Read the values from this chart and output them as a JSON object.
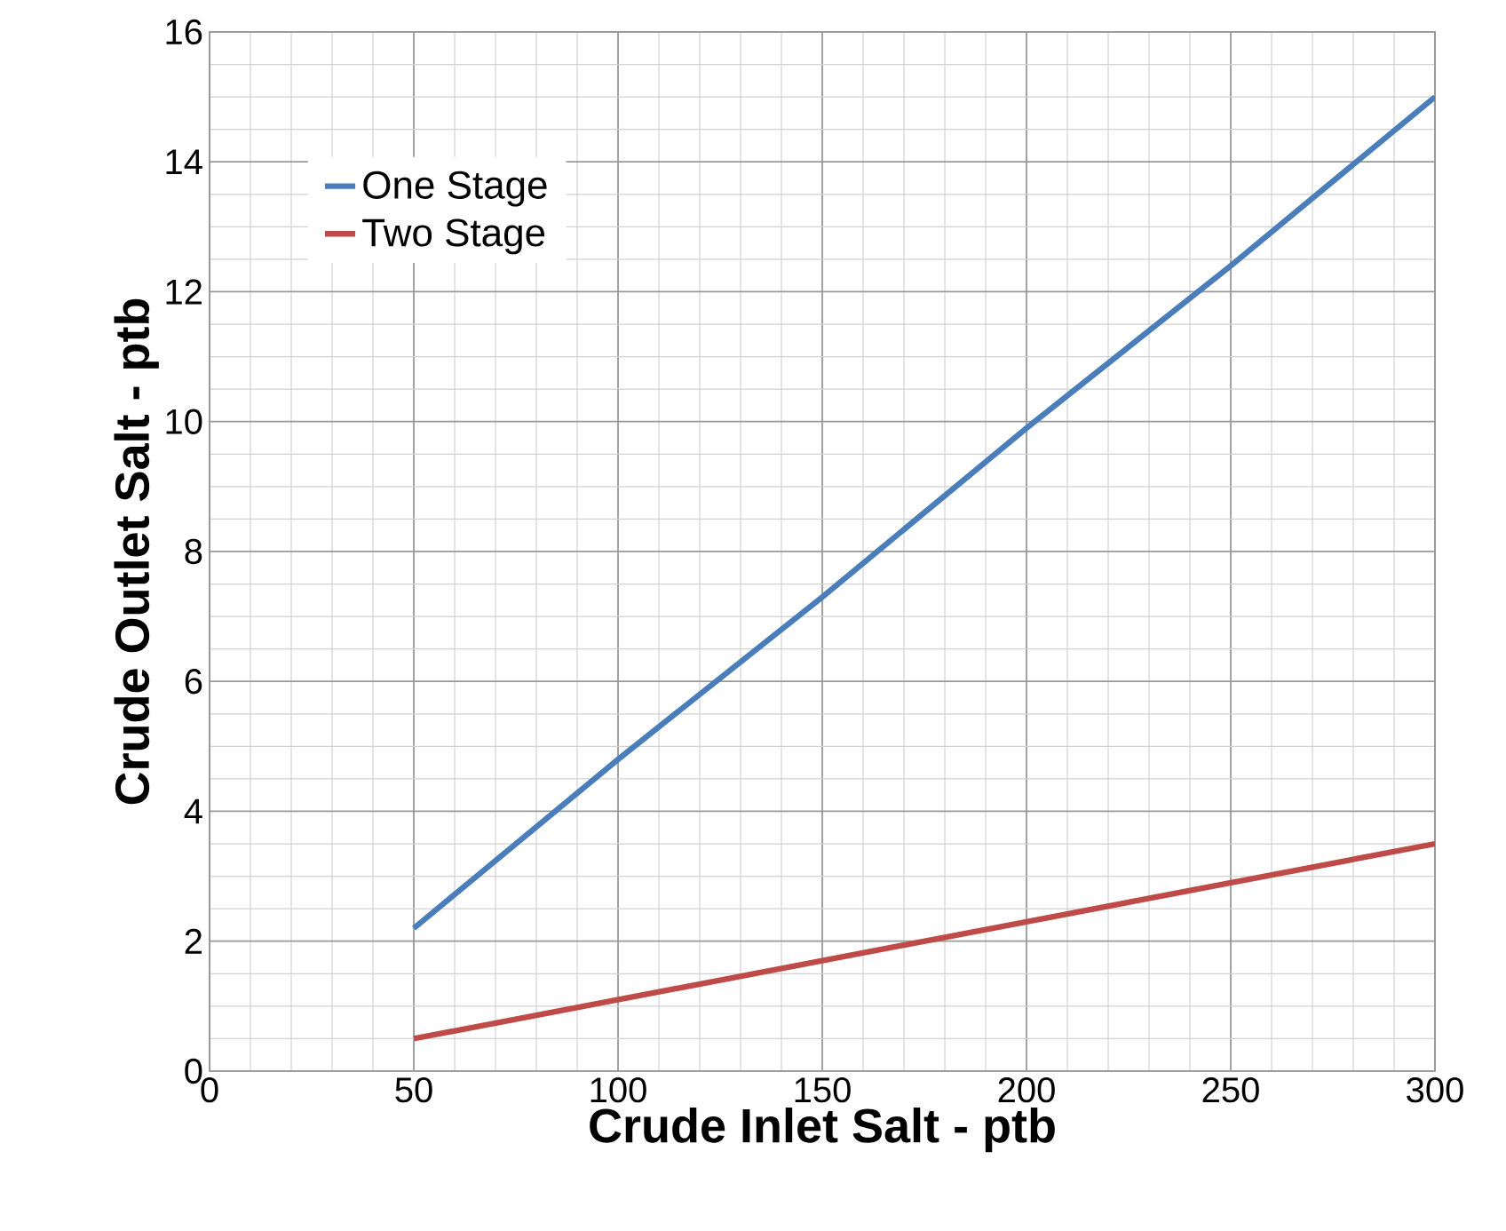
{
  "chart_data": {
    "type": "line",
    "xlabel": "Crude Inlet Salt - ptb",
    "ylabel": "Crude Outlet Salt - ptb",
    "x": [
      50,
      100,
      150,
      200,
      250,
      300
    ],
    "series": [
      {
        "name": "One Stage",
        "color": "#4a7ebb",
        "values": [
          2.2,
          4.8,
          7.3,
          9.9,
          12.4,
          15.0
        ]
      },
      {
        "name": "Two Stage",
        "color": "#be4b48",
        "values": [
          0.5,
          1.1,
          1.7,
          2.3,
          2.9,
          3.5
        ]
      }
    ],
    "xlim": [
      0,
      300
    ],
    "ylim": [
      0,
      16
    ],
    "xticks": [
      0,
      50,
      100,
      150,
      200,
      250,
      300
    ],
    "yticks": [
      0,
      2,
      4,
      6,
      8,
      10,
      12,
      14,
      16
    ],
    "grid": true,
    "legend": "top left",
    "marker": "none",
    "line_style": "solid"
  }
}
